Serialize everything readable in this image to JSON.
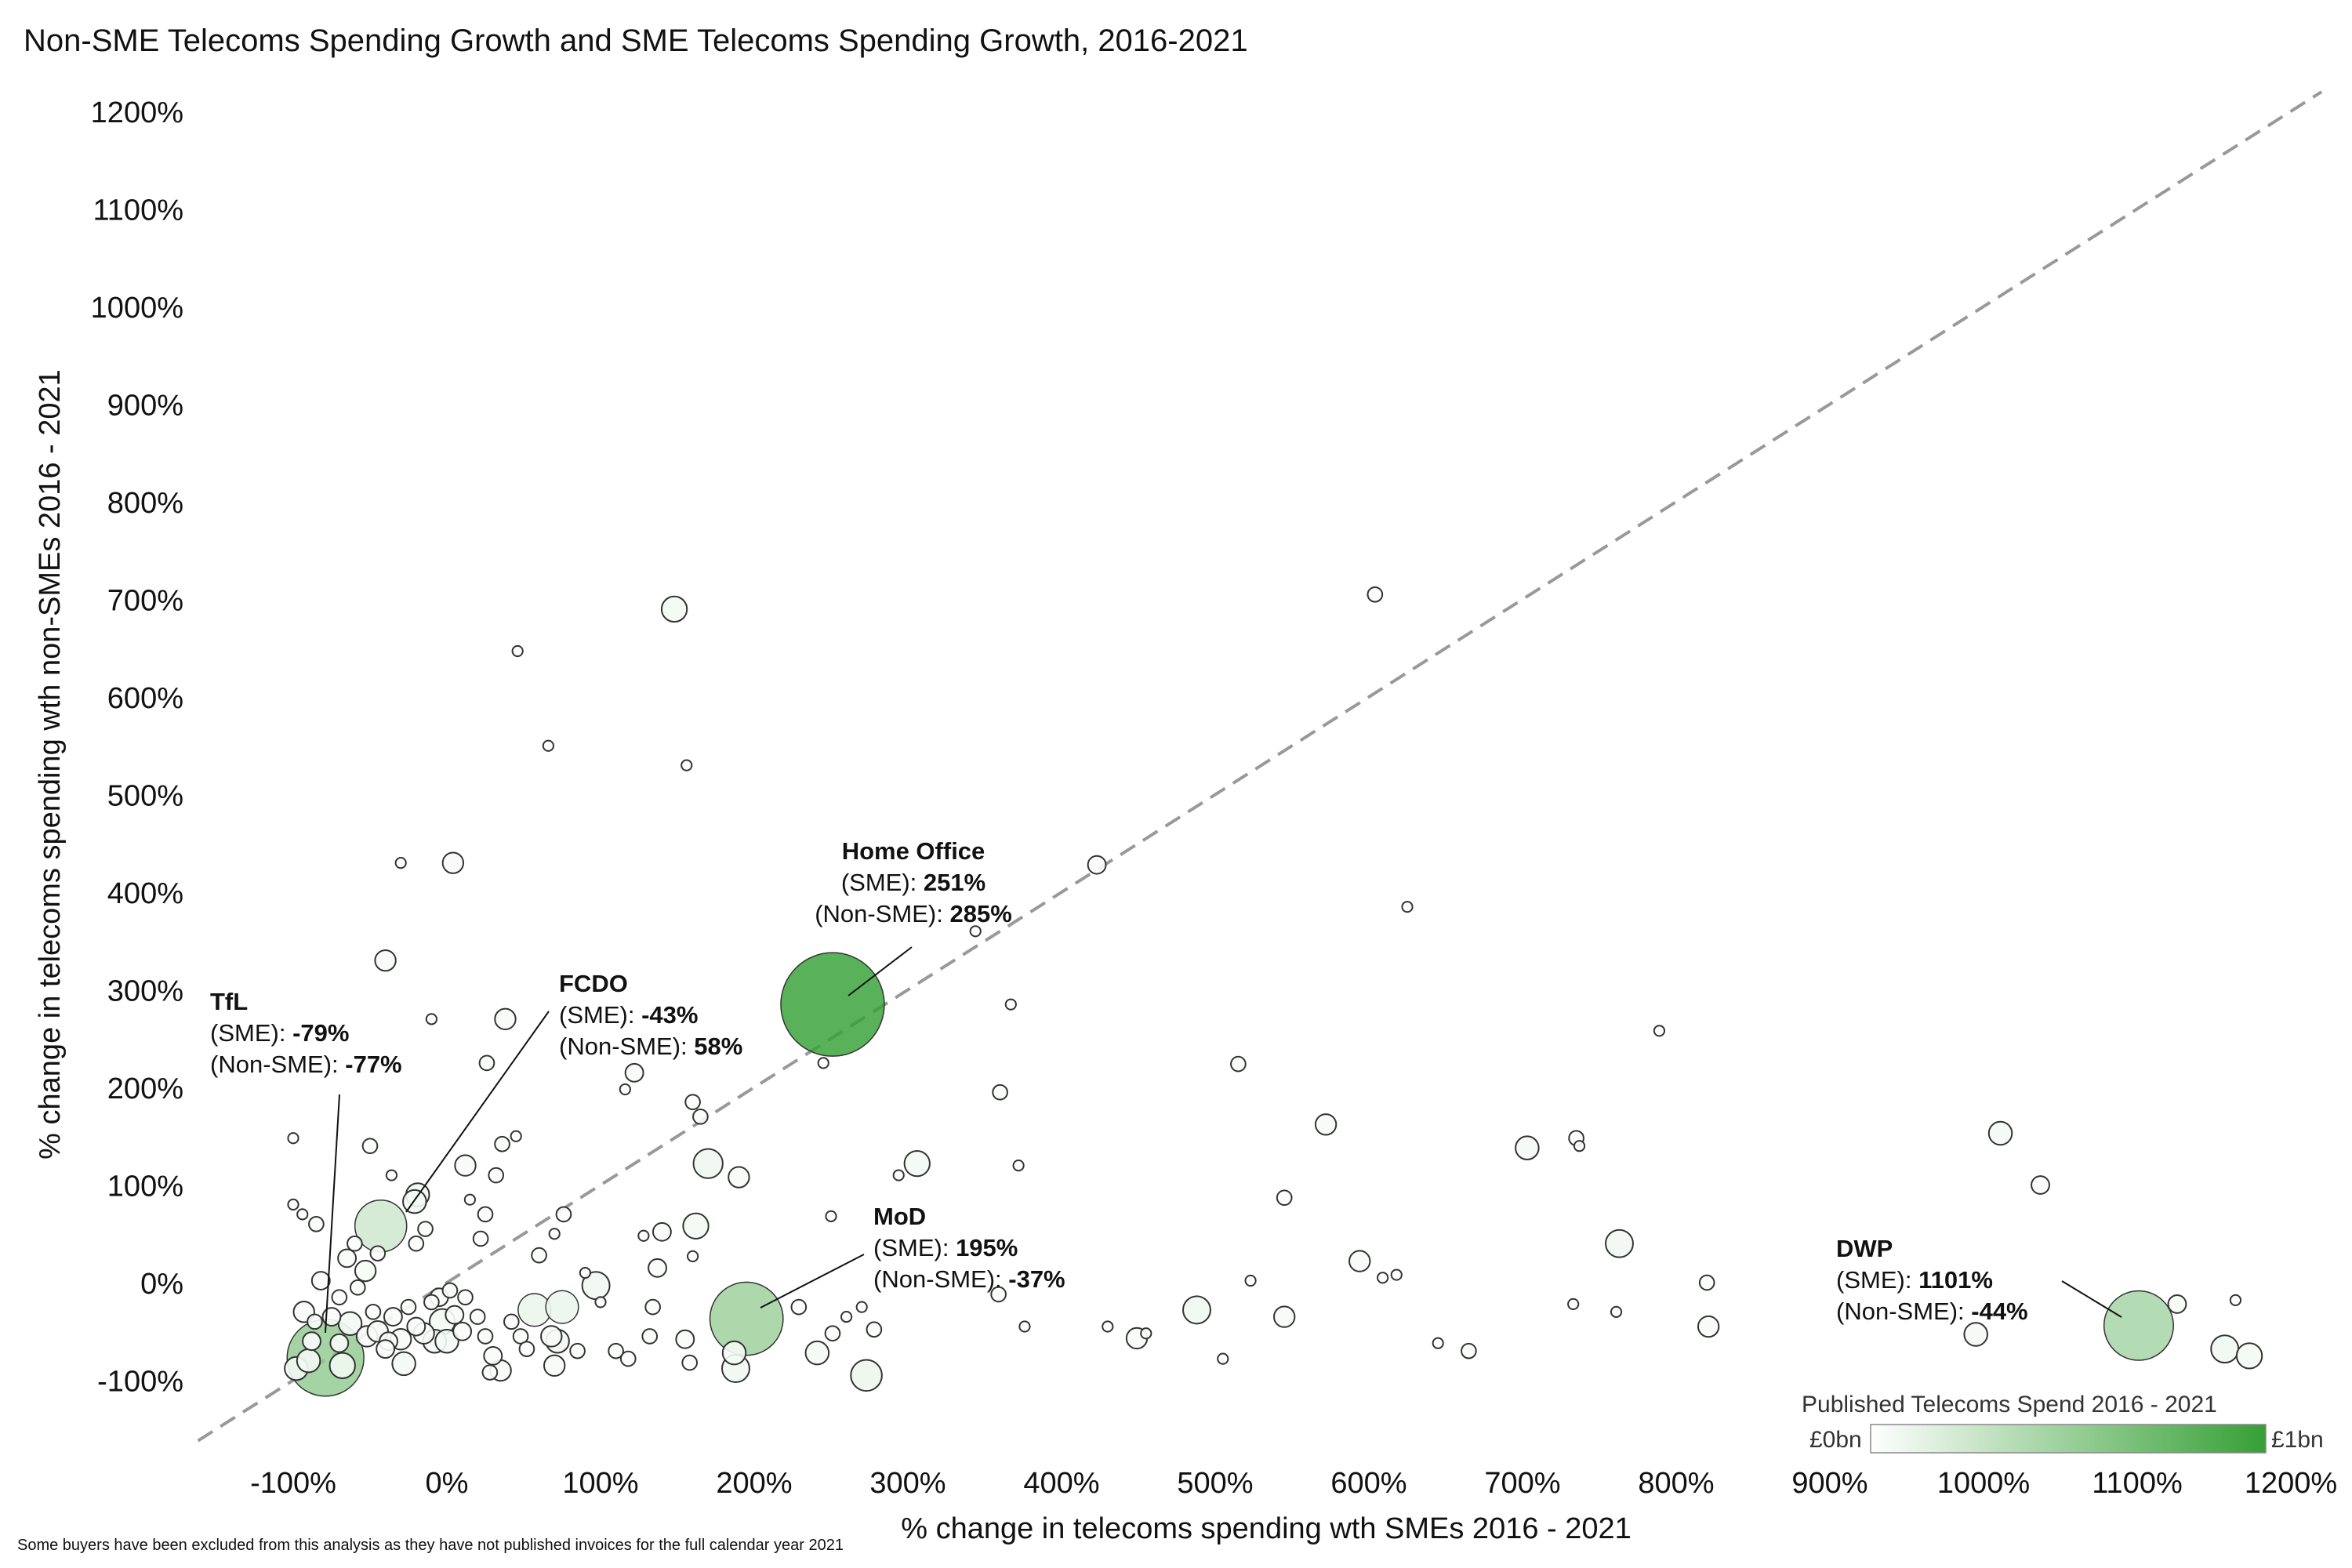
{
  "chart_data": {
    "type": "scatter",
    "title": "Non-SME Telecoms Spending Growth and SME Telecoms Spending Growth, 2016-2021",
    "xlabel": "% change in telecoms spending wth SMEs 2016 - 2021",
    "ylabel": "% change in telecoms spending wth non-SMEs 2016 - 2021",
    "xlim": [
      -170,
      1220
    ],
    "ylim": [
      -170,
      1220
    ],
    "x_ticks": [
      -100,
      0,
      100,
      200,
      300,
      400,
      500,
      600,
      700,
      800,
      900,
      1000,
      1100,
      1200
    ],
    "x_tick_labels": [
      "-100%",
      "0%",
      "100%",
      "200%",
      "300%",
      "400%",
      "500%",
      "600%",
      "700%",
      "800%",
      "900%",
      "1000%",
      "1100%",
      "1200%"
    ],
    "y_ticks": [
      -100,
      0,
      100,
      200,
      300,
      400,
      500,
      600,
      700,
      800,
      900,
      1000,
      1100,
      1200
    ],
    "y_tick_labels": [
      "-100%",
      "0%",
      "100%",
      "200%",
      "300%",
      "400%",
      "500%",
      "600%",
      "700%",
      "800%",
      "900%",
      "1000%",
      "1100%",
      "1200%"
    ],
    "grid": false,
    "reference_line": "y = x (dashed)",
    "reference_line_color": "#999999",
    "size_and_color_encoding": "Published Telecoms Spend 2016 - 2021",
    "legend": {
      "title": "Published Telecoms Spend 2016 - 2021",
      "min_label": "£0bn",
      "max_label": "£1bn",
      "placement": "bottom-right",
      "color_min": "#ffffff",
      "color_max": "#35a035"
    },
    "annotations": [
      {
        "name": "Home Office",
        "lines": [
          "(SME): ",
          "(Non-SME): "
        ],
        "values": [
          "251%",
          "285%"
        ],
        "point": [
          251,
          285
        ]
      },
      {
        "name": "FCDO",
        "lines": [
          "(SME): ",
          "(Non-SME): "
        ],
        "values": [
          "-43%",
          "58%"
        ],
        "point": [
          -43,
          58
        ]
      },
      {
        "name": "TfL",
        "lines": [
          "(SME): ",
          "(Non-SME): "
        ],
        "values": [
          "-79%",
          "-77%"
        ],
        "point": [
          -79,
          -77
        ]
      },
      {
        "name": "MoD",
        "lines": [
          "(SME): ",
          "(Non-SME): "
        ],
        "values": [
          "195%",
          "-37%"
        ],
        "point": [
          195,
          -37
        ]
      },
      {
        "name": "DWP",
        "lines": [
          "(SME): ",
          "(Non-SME): "
        ],
        "values": [
          "1101%",
          "-44%"
        ],
        "point": [
          1101,
          -44
        ]
      }
    ],
    "points": [
      {
        "x": 251,
        "y": 285,
        "spend": 1.0
      },
      {
        "x": 1101,
        "y": -44,
        "spend": 0.45
      },
      {
        "x": 195,
        "y": -37,
        "spend": 0.5
      },
      {
        "x": -79,
        "y": -77,
        "spend": 0.55
      },
      {
        "x": -43,
        "y": 58,
        "spend": 0.25
      },
      {
        "x": 148,
        "y": 690,
        "spend": 0.06
      },
      {
        "x": 4,
        "y": 430,
        "spend": 0.04
      },
      {
        "x": 423,
        "y": 428,
        "spend": 0.03
      },
      {
        "x": 604,
        "y": 705,
        "spend": 0.02
      },
      {
        "x": -40,
        "y": 330,
        "spend": 0.04
      },
      {
        "x": 38,
        "y": 270,
        "spend": 0.04
      },
      {
        "x": 170,
        "y": 122,
        "spend": 0.08
      },
      {
        "x": 306,
        "y": 122,
        "spend": 0.06
      },
      {
        "x": 162,
        "y": 58,
        "spend": 0.06
      },
      {
        "x": 97,
        "y": -3,
        "spend": 0.07
      },
      {
        "x": 57,
        "y": -28,
        "spend": 0.1
      },
      {
        "x": 75,
        "y": -25,
        "spend": 0.1
      },
      {
        "x": 273,
        "y": -95,
        "spend": 0.09
      },
      {
        "x": 188,
        "y": -88,
        "spend": 0.07
      },
      {
        "x": 187,
        "y": -72,
        "spend": 0.05
      },
      {
        "x": 241,
        "y": -72,
        "spend": 0.05
      },
      {
        "x": 488,
        "y": -28,
        "spend": 0.07
      },
      {
        "x": 763,
        "y": 40,
        "spend": 0.07
      },
      {
        "x": 703,
        "y": 138,
        "spend": 0.05
      },
      {
        "x": 572,
        "y": 162,
        "spend": 0.04
      },
      {
        "x": 594,
        "y": 22,
        "spend": 0.04
      },
      {
        "x": 1011,
        "y": 153,
        "spend": 0.05
      },
      {
        "x": 995,
        "y": -53,
        "spend": 0.05
      },
      {
        "x": 1157,
        "y": -68,
        "spend": 0.07
      },
      {
        "x": 1173,
        "y": -75,
        "spend": 0.06
      },
      {
        "x": 449,
        "y": -57,
        "spend": 0.04
      },
      {
        "x": 545,
        "y": -35,
        "spend": 0.04
      },
      {
        "x": 821,
        "y": -45,
        "spend": 0.04
      },
      {
        "x": 1037,
        "y": 100,
        "spend": 0.03
      },
      {
        "x": 1126,
        "y": -22,
        "spend": 0.03
      },
      {
        "x": 625,
        "y": 385,
        "spend": 0.01
      },
      {
        "x": 789,
        "y": 258,
        "spend": 0.01
      },
      {
        "x": 515,
        "y": 224,
        "spend": 0.02
      },
      {
        "x": 545,
        "y": 87,
        "spend": 0.02
      },
      {
        "x": 360,
        "y": 195,
        "spend": 0.02
      },
      {
        "x": 367,
        "y": 285,
        "spend": 0.01
      },
      {
        "x": 344,
        "y": 360,
        "spend": 0.01
      },
      {
        "x": 46,
        "y": 647,
        "spend": 0.01
      },
      {
        "x": 66,
        "y": 550,
        "spend": 0.01
      },
      {
        "x": 156,
        "y": 530,
        "spend": 0.01
      },
      {
        "x": -30,
        "y": 430,
        "spend": 0.01
      },
      {
        "x": 122,
        "y": 215,
        "spend": 0.03
      },
      {
        "x": 26,
        "y": 225,
        "spend": 0.02
      },
      {
        "x": 160,
        "y": 185,
        "spend": 0.02
      },
      {
        "x": 165,
        "y": 170,
        "spend": 0.02
      },
      {
        "x": 190,
        "y": 108,
        "spend": 0.04
      },
      {
        "x": 12,
        "y": 120,
        "spend": 0.04
      },
      {
        "x": -19,
        "y": 90,
        "spend": 0.05
      },
      {
        "x": -21,
        "y": 83,
        "spend": 0.05
      },
      {
        "x": 36,
        "y": 142,
        "spend": 0.02
      },
      {
        "x": 32,
        "y": 110,
        "spend": 0.02
      },
      {
        "x": 25,
        "y": 70,
        "spend": 0.02
      },
      {
        "x": 76,
        "y": 70,
        "spend": 0.02
      },
      {
        "x": 140,
        "y": 52,
        "spend": 0.03
      },
      {
        "x": 137,
        "y": 15,
        "spend": 0.03
      },
      {
        "x": -53,
        "y": 12,
        "spend": 0.04
      },
      {
        "x": -82,
        "y": 2,
        "spend": 0.03
      },
      {
        "x": -65,
        "y": 25,
        "spend": 0.03
      },
      {
        "x": -93,
        "y": -30,
        "spend": 0.04
      },
      {
        "x": -98,
        "y": -88,
        "spend": 0.05
      },
      {
        "x": -90,
        "y": -80,
        "spend": 0.05
      },
      {
        "x": -68,
        "y": -85,
        "spend": 0.06
      },
      {
        "x": -63,
        "y": -42,
        "spend": 0.05
      },
      {
        "x": -52,
        "y": -55,
        "spend": 0.04
      },
      {
        "x": -45,
        "y": -50,
        "spend": 0.04
      },
      {
        "x": -38,
        "y": -60,
        "spend": 0.03
      },
      {
        "x": -30,
        "y": -58,
        "spend": 0.04
      },
      {
        "x": -28,
        "y": -83,
        "spend": 0.05
      },
      {
        "x": -20,
        "y": -45,
        "spend": 0.03
      },
      {
        "x": -15,
        "y": -52,
        "spend": 0.04
      },
      {
        "x": -8,
        "y": -60,
        "spend": 0.05
      },
      {
        "x": -3,
        "y": -40,
        "spend": 0.06
      },
      {
        "x": 0,
        "y": -60,
        "spend": 0.05
      },
      {
        "x": 10,
        "y": -50,
        "spend": 0.03
      },
      {
        "x": 5,
        "y": -33,
        "spend": 0.03
      },
      {
        "x": -35,
        "y": -35,
        "spend": 0.03
      },
      {
        "x": -40,
        "y": -68,
        "spend": 0.03
      },
      {
        "x": -25,
        "y": -25,
        "spend": 0.02
      },
      {
        "x": -10,
        "y": -20,
        "spend": 0.02
      },
      {
        "x": -5,
        "y": -15,
        "spend": 0.03
      },
      {
        "x": 2,
        "y": -8,
        "spend": 0.02
      },
      {
        "x": 12,
        "y": -15,
        "spend": 0.02
      },
      {
        "x": 20,
        "y": -35,
        "spend": 0.02
      },
      {
        "x": 25,
        "y": -55,
        "spend": 0.02
      },
      {
        "x": 30,
        "y": -75,
        "spend": 0.03
      },
      {
        "x": 35,
        "y": -90,
        "spend": 0.04
      },
      {
        "x": 28,
        "y": -92,
        "spend": 0.02
      },
      {
        "x": 42,
        "y": -40,
        "spend": 0.02
      },
      {
        "x": 48,
        "y": -55,
        "spend": 0.02
      },
      {
        "x": 52,
        "y": -68,
        "spend": 0.02
      },
      {
        "x": 68,
        "y": -55,
        "spend": 0.04
      },
      {
        "x": 72,
        "y": -60,
        "spend": 0.05
      },
      {
        "x": 70,
        "y": -85,
        "spend": 0.04
      },
      {
        "x": 85,
        "y": -70,
        "spend": 0.02
      },
      {
        "x": 110,
        "y": -70,
        "spend": 0.02
      },
      {
        "x": 118,
        "y": -78,
        "spend": 0.02
      },
      {
        "x": 132,
        "y": -55,
        "spend": 0.02
      },
      {
        "x": 134,
        "y": -25,
        "spend": 0.02
      },
      {
        "x": 155,
        "y": -58,
        "spend": 0.03
      },
      {
        "x": 158,
        "y": -82,
        "spend": 0.02
      },
      {
        "x": 229,
        "y": -25,
        "spend": 0.02
      },
      {
        "x": 251,
        "y": -52,
        "spend": 0.02
      },
      {
        "x": 278,
        "y": -48,
        "spend": 0.02
      },
      {
        "x": 359,
        "y": -12,
        "spend": 0.02
      },
      {
        "x": 376,
        "y": -45,
        "spend": 0.01
      },
      {
        "x": 430,
        "y": -45,
        "spend": 0.01
      },
      {
        "x": 455,
        "y": -52,
        "spend": 0.01
      },
      {
        "x": 505,
        "y": -78,
        "spend": 0.01
      },
      {
        "x": 523,
        "y": 2,
        "spend": 0.01
      },
      {
        "x": 609,
        "y": 5,
        "spend": 0.01
      },
      {
        "x": 618,
        "y": 8,
        "spend": 0.01
      },
      {
        "x": 645,
        "y": -62,
        "spend": 0.01
      },
      {
        "x": 665,
        "y": -70,
        "spend": 0.02
      },
      {
        "x": 735,
        "y": 148,
        "spend": 0.02
      },
      {
        "x": 737,
        "y": 140,
        "spend": 0.01
      },
      {
        "x": 733,
        "y": -22,
        "spend": 0.01
      },
      {
        "x": 761,
        "y": -30,
        "spend": 0.01
      },
      {
        "x": 820,
        "y": 0,
        "spend": 0.02
      },
      {
        "x": 1164,
        "y": -18,
        "spend": 0.01
      },
      {
        "x": 294,
        "y": 110,
        "spend": 0.01
      },
      {
        "x": 372,
        "y": 120,
        "spend": 0.01
      },
      {
        "x": 250,
        "y": 68,
        "spend": 0.01
      },
      {
        "x": 245,
        "y": 225,
        "spend": 0.01
      },
      {
        "x": 128,
        "y": 48,
        "spend": 0.01
      },
      {
        "x": 160,
        "y": 27,
        "spend": 0.01
      },
      {
        "x": 116,
        "y": 198,
        "spend": 0.01
      },
      {
        "x": -10,
        "y": 270,
        "spend": 0.01
      },
      {
        "x": 45,
        "y": 150,
        "spend": 0.01
      },
      {
        "x": -100,
        "y": 148,
        "spend": 0.01
      },
      {
        "x": -50,
        "y": 140,
        "spend": 0.02
      },
      {
        "x": -36,
        "y": 110,
        "spend": 0.01
      },
      {
        "x": -100,
        "y": 80,
        "spend": 0.01
      },
      {
        "x": -85,
        "y": 60,
        "spend": 0.02
      },
      {
        "x": -94,
        "y": 70,
        "spend": 0.01
      },
      {
        "x": -60,
        "y": 40,
        "spend": 0.02
      },
      {
        "x": -45,
        "y": 30,
        "spend": 0.02
      },
      {
        "x": -20,
        "y": 40,
        "spend": 0.02
      },
      {
        "x": -14,
        "y": 55,
        "spend": 0.02
      },
      {
        "x": 15,
        "y": 85,
        "spend": 0.01
      },
      {
        "x": 22,
        "y": 45,
        "spend": 0.02
      },
      {
        "x": -70,
        "y": -15,
        "spend": 0.02
      },
      {
        "x": -58,
        "y": -5,
        "spend": 0.02
      },
      {
        "x": -48,
        "y": -30,
        "spend": 0.02
      },
      {
        "x": -75,
        "y": -35,
        "spend": 0.03
      },
      {
        "x": -88,
        "y": -60,
        "spend": 0.03
      },
      {
        "x": -86,
        "y": -40,
        "spend": 0.02
      },
      {
        "x": -70,
        "y": -62,
        "spend": 0.03
      },
      {
        "x": 60,
        "y": 28,
        "spend": 0.02
      },
      {
        "x": 70,
        "y": 50,
        "spend": 0.01
      },
      {
        "x": 90,
        "y": 10,
        "spend": 0.01
      },
      {
        "x": 100,
        "y": -20,
        "spend": 0.01
      },
      {
        "x": 260,
        "y": -35,
        "spend": 0.01
      },
      {
        "x": 270,
        "y": -25,
        "spend": 0.01
      }
    ]
  },
  "footnote": "Some buyers have been excluded from this analysis as they have not published invoices for the full calendar year 2021"
}
